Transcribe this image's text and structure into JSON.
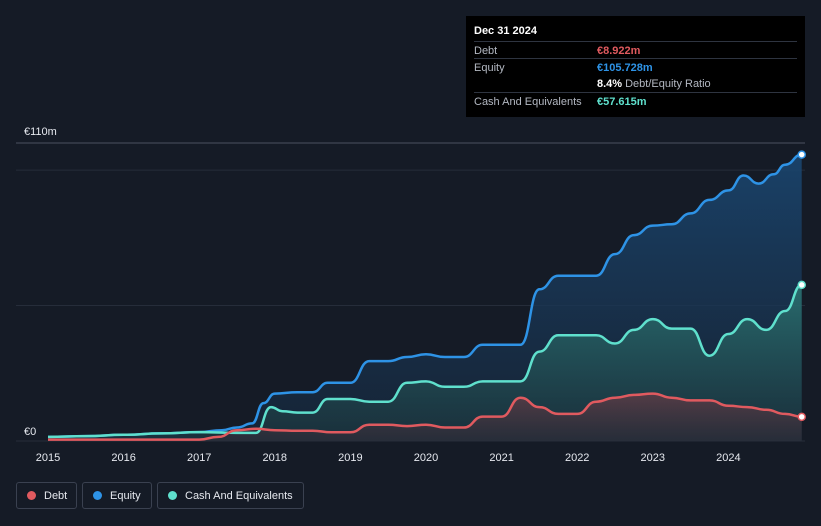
{
  "tooltip": {
    "date": "Dec 31 2024",
    "debt_label": "Debt",
    "debt_value": "€8.922m",
    "equity_label": "Equity",
    "equity_value": "€105.728m",
    "ratio_value": "8.4%",
    "ratio_label": "Debt/Equity Ratio",
    "cash_label": "Cash And Equivalents",
    "cash_value": "€57.615m"
  },
  "legend": {
    "debt": "Debt",
    "equity": "Equity",
    "cash": "Cash And Equivalents"
  },
  "colors": {
    "debt": "#e05a5f",
    "equity": "#2e93e6",
    "cash": "#5fe0cd",
    "background": "#151b26"
  },
  "chart_data": {
    "type": "area",
    "ylabel_top": "€110m",
    "ylabel_bottom": "€0",
    "ylim": [
      0,
      110
    ],
    "x_ticks": [
      "2015",
      "2016",
      "2017",
      "2018",
      "2019",
      "2020",
      "2021",
      "2022",
      "2023",
      "2024"
    ],
    "x_range": [
      2015,
      2025
    ],
    "series": [
      {
        "name": "Equity",
        "points": [
          [
            2015.0,
            1.5
          ],
          [
            2015.5,
            1.8
          ],
          [
            2016.0,
            2.3
          ],
          [
            2016.5,
            2.8
          ],
          [
            2017.0,
            3.3
          ],
          [
            2017.3,
            4.0
          ],
          [
            2017.5,
            5.0
          ],
          [
            2017.7,
            6.5
          ],
          [
            2017.85,
            14.0
          ],
          [
            2018.0,
            17.5
          ],
          [
            2018.3,
            18.0
          ],
          [
            2018.5,
            18.0
          ],
          [
            2018.7,
            21.5
          ],
          [
            2019.0,
            21.5
          ],
          [
            2019.25,
            29.5
          ],
          [
            2019.5,
            29.5
          ],
          [
            2019.75,
            31.0
          ],
          [
            2020.0,
            32.0
          ],
          [
            2020.25,
            31.0
          ],
          [
            2020.5,
            31.0
          ],
          [
            2020.75,
            35.5
          ],
          [
            2021.0,
            35.5
          ],
          [
            2021.25,
            35.5
          ],
          [
            2021.5,
            56.0
          ],
          [
            2021.75,
            61.0
          ],
          [
            2022.0,
            61.0
          ],
          [
            2022.25,
            61.0
          ],
          [
            2022.5,
            69.0
          ],
          [
            2022.75,
            76.0
          ],
          [
            2023.0,
            79.5
          ],
          [
            2023.25,
            80.0
          ],
          [
            2023.5,
            84.0
          ],
          [
            2023.75,
            89.0
          ],
          [
            2024.0,
            92.5
          ],
          [
            2024.2,
            98.0
          ],
          [
            2024.4,
            95.0
          ],
          [
            2024.6,
            98.5
          ],
          [
            2024.75,
            102.0
          ],
          [
            2024.97,
            105.728
          ]
        ]
      },
      {
        "name": "Cash And Equivalents",
        "points": [
          [
            2015.0,
            1.5
          ],
          [
            2015.5,
            1.8
          ],
          [
            2016.0,
            2.3
          ],
          [
            2016.5,
            2.8
          ],
          [
            2017.0,
            3.3
          ],
          [
            2017.5,
            3.0
          ],
          [
            2017.75,
            3.0
          ],
          [
            2017.95,
            12.5
          ],
          [
            2018.1,
            11.0
          ],
          [
            2018.3,
            10.5
          ],
          [
            2018.5,
            10.5
          ],
          [
            2018.7,
            15.5
          ],
          [
            2019.0,
            15.5
          ],
          [
            2019.25,
            14.5
          ],
          [
            2019.5,
            14.5
          ],
          [
            2019.75,
            21.5
          ],
          [
            2020.0,
            22.0
          ],
          [
            2020.25,
            20.0
          ],
          [
            2020.5,
            20.0
          ],
          [
            2020.75,
            22.0
          ],
          [
            2021.0,
            22.0
          ],
          [
            2021.25,
            22.0
          ],
          [
            2021.5,
            33.0
          ],
          [
            2021.75,
            39.0
          ],
          [
            2022.0,
            39.0
          ],
          [
            2022.25,
            39.0
          ],
          [
            2022.5,
            36.0
          ],
          [
            2022.75,
            41.0
          ],
          [
            2023.0,
            45.0
          ],
          [
            2023.25,
            41.5
          ],
          [
            2023.5,
            41.5
          ],
          [
            2023.75,
            31.5
          ],
          [
            2024.0,
            39.5
          ],
          [
            2024.25,
            45.0
          ],
          [
            2024.5,
            41.0
          ],
          [
            2024.75,
            48.0
          ],
          [
            2024.97,
            57.615
          ]
        ]
      },
      {
        "name": "Debt",
        "points": [
          [
            2015.0,
            0.5
          ],
          [
            2015.5,
            0.5
          ],
          [
            2016.0,
            0.5
          ],
          [
            2016.5,
            0.5
          ],
          [
            2017.0,
            0.5
          ],
          [
            2017.25,
            1.5
          ],
          [
            2017.5,
            4.0
          ],
          [
            2017.75,
            4.5
          ],
          [
            2018.0,
            4.0
          ],
          [
            2018.3,
            3.8
          ],
          [
            2018.5,
            3.8
          ],
          [
            2018.75,
            3.2
          ],
          [
            2019.0,
            3.2
          ],
          [
            2019.25,
            6.0
          ],
          [
            2019.5,
            6.0
          ],
          [
            2019.75,
            5.5
          ],
          [
            2020.0,
            6.0
          ],
          [
            2020.25,
            5.0
          ],
          [
            2020.5,
            5.0
          ],
          [
            2020.75,
            9.0
          ],
          [
            2021.0,
            9.0
          ],
          [
            2021.25,
            16.0
          ],
          [
            2021.5,
            12.5
          ],
          [
            2021.75,
            10.0
          ],
          [
            2022.0,
            10.0
          ],
          [
            2022.25,
            14.5
          ],
          [
            2022.5,
            16.0
          ],
          [
            2022.75,
            17.0
          ],
          [
            2023.0,
            17.5
          ],
          [
            2023.25,
            16.0
          ],
          [
            2023.5,
            15.0
          ],
          [
            2023.75,
            15.0
          ],
          [
            2024.0,
            13.0
          ],
          [
            2024.25,
            12.5
          ],
          [
            2024.5,
            11.5
          ],
          [
            2024.75,
            10.0
          ],
          [
            2024.97,
            8.922
          ]
        ]
      }
    ]
  }
}
